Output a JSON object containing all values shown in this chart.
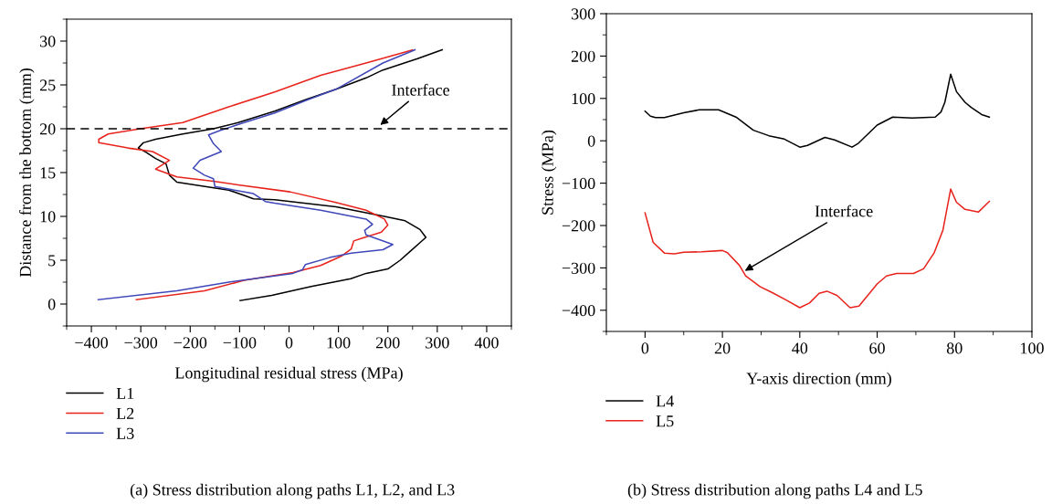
{
  "chart_data": [
    {
      "type": "line",
      "xlabel": "Longitudinal residual stress (MPa)",
      "ylabel": "Distance from the bottom (mm)",
      "xlim": [
        -450,
        450
      ],
      "xticks": [
        -400,
        -300,
        -200,
        -100,
        0,
        100,
        200,
        300,
        400
      ],
      "ylim": [
        -2.5,
        32.5
      ],
      "yticks": [
        0,
        5,
        10,
        15,
        20,
        25,
        30
      ],
      "grid": false,
      "legend": "bottom",
      "line_style": "solid",
      "marker": "none",
      "ref_lines": [
        {
          "axis": "y",
          "value": 20,
          "label": null,
          "color": "#000000",
          "line_style": "dashed"
        }
      ],
      "annotations": [
        "Interface",
        "(a) Stress distribution along paths L1, L2, and L3"
      ],
      "series": [
        {
          "name": "L1",
          "color": "#000000",
          "x": [
            -99,
            -35,
            45,
            125,
            156,
            200,
            225,
            245,
            265,
            277,
            265,
            235,
            193,
            95,
            -29,
            -72,
            -91,
            -122,
            -227,
            -242,
            -249,
            -270,
            -289,
            -305,
            -295,
            -270,
            -215,
            -153,
            -103,
            -29,
            33,
            95,
            156,
            190,
            260,
            310
          ],
          "values": [
            0.4,
            1.0,
            2.0,
            2.9,
            3.5,
            4.0,
            5.0,
            6.0,
            7.0,
            7.6,
            8.5,
            9.5,
            10.0,
            11.1,
            11.9,
            12.0,
            12.4,
            13.0,
            13.9,
            14.7,
            16.0,
            16.6,
            17.3,
            17.8,
            18.4,
            18.8,
            19.4,
            20.0,
            20.7,
            22.0,
            23.3,
            24.5,
            25.8,
            26.7,
            28.0,
            29.0
          ]
        },
        {
          "name": "L2",
          "color": "#e8231c",
          "x": [
            -309,
            -171,
            -91,
            8,
            64,
            107,
            126,
            131,
            147,
            187,
            200,
            193,
            156,
            95,
            2,
            -103,
            -153,
            -227,
            -270,
            -242,
            -276,
            -326,
            -385,
            -385,
            -366,
            -301,
            -215,
            -122,
            -29,
            64,
            156,
            250
          ],
          "values": [
            0.5,
            1.5,
            2.7,
            3.6,
            4.4,
            5.5,
            6.3,
            7.2,
            7.5,
            8.2,
            9.0,
            9.7,
            10.7,
            11.6,
            12.8,
            13.6,
            14.0,
            14.5,
            15.4,
            16.4,
            17.4,
            17.8,
            18.4,
            18.8,
            19.4,
            20.0,
            20.7,
            22.5,
            24.2,
            26.1,
            27.5,
            29.0
          ]
        },
        {
          "name": "L3",
          "color": "#3f48b8",
          "x": [
            -386,
            -227,
            -122,
            8,
            27,
            33,
            82,
            126,
            190,
            210,
            156,
            153,
            169,
            156,
            64,
            -29,
            -48,
            -72,
            -150,
            -153,
            -171,
            -194,
            -180,
            -137,
            -153,
            -163,
            -140,
            -91,
            -29,
            33,
            95,
            190,
            255
          ],
          "values": [
            0.5,
            1.5,
            2.5,
            3.5,
            3.9,
            4.5,
            5.3,
            5.8,
            6.2,
            6.8,
            7.9,
            8.4,
            9.1,
            9.7,
            10.7,
            11.5,
            11.7,
            12.6,
            13.4,
            14.3,
            14.7,
            15.5,
            16.4,
            17.4,
            18.3,
            19.3,
            19.8,
            20.7,
            21.8,
            23.2,
            24.5,
            27.5,
            29.0
          ]
        }
      ]
    },
    {
      "type": "line",
      "xlabel": "Y-axis direction (mm)",
      "ylabel": "Stress (MPa)",
      "xlim": [
        -10,
        100
      ],
      "xticks": [
        0,
        20,
        40,
        60,
        80,
        100
      ],
      "ylim": [
        -450,
        300
      ],
      "yticks": [
        -400,
        -300,
        -200,
        -100,
        0,
        100,
        200,
        300
      ],
      "grid": false,
      "legend": "bottom",
      "line_style": "solid",
      "marker": "none",
      "annotations": [
        {
          "text": "Interface",
          "x": 25.8,
          "y": -307
        },
        "(b) Stress distribution along paths L4 and L5"
      ],
      "series": [
        {
          "name": "L4",
          "color": "#000000",
          "x": [
            0,
            1.4,
            2.7,
            5,
            10,
            14,
            19,
            23.5,
            28,
            32,
            36,
            40,
            42,
            46.5,
            49,
            53.5,
            55,
            60,
            64,
            69,
            75,
            76.5,
            77.5,
            79,
            80.5,
            82.7,
            84.3,
            87,
            89
          ],
          "values": [
            70,
            58,
            55,
            55,
            66,
            73,
            73,
            56,
            25,
            12,
            4,
            -15,
            -11,
            8,
            2,
            -15,
            -7,
            37,
            56,
            54,
            56,
            68,
            91,
            157,
            116,
            91,
            79,
            62,
            56
          ]
        },
        {
          "name": "L5",
          "color": "#e8231c",
          "x": [
            0,
            2.1,
            5,
            7.6,
            10,
            14.7,
            20,
            21.3,
            24.4,
            26,
            29.7,
            33,
            36.7,
            40,
            42.5,
            45,
            47,
            49.6,
            53,
            55.3,
            60,
            62.4,
            65,
            69.4,
            72,
            74.7,
            77,
            79,
            80.5,
            82.7,
            86.2,
            89
          ],
          "values": [
            -170,
            -240,
            -265,
            -267,
            -263,
            -262,
            -259,
            -264,
            -294,
            -319,
            -344,
            -359,
            -377,
            -394,
            -383,
            -360,
            -355,
            -365,
            -394,
            -390,
            -338,
            -319,
            -313,
            -313,
            -302,
            -265,
            -211,
            -114,
            -145,
            -162,
            -168,
            -143
          ]
        }
      ]
    }
  ]
}
